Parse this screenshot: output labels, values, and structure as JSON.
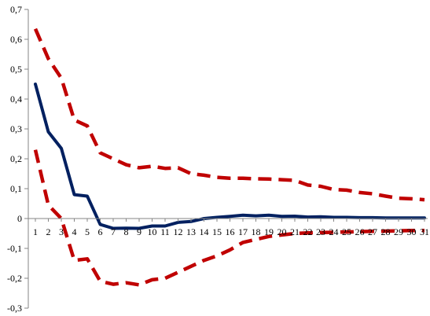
{
  "chart_data": {
    "type": "line",
    "title": "",
    "xlabel": "",
    "ylabel": "",
    "x": [
      1,
      2,
      3,
      4,
      5,
      6,
      7,
      8,
      9,
      10,
      11,
      12,
      13,
      14,
      15,
      16,
      17,
      18,
      19,
      20,
      21,
      22,
      23,
      24,
      25,
      26,
      27,
      28,
      29,
      30,
      31
    ],
    "x_tick_labels": [
      "1",
      "2",
      "3",
      "4",
      "5",
      "6",
      "7",
      "8",
      "9",
      "10",
      "11",
      "12",
      "13",
      "14",
      "15",
      "16",
      "17",
      "18",
      "19",
      "20",
      "21",
      "22",
      "23",
      "24",
      "25",
      "26",
      "27",
      "28",
      "29",
      "30",
      "31"
    ],
    "ylim": [
      -0.3,
      0.7
    ],
    "y_ticks": [
      -0.3,
      -0.2,
      -0.1,
      0,
      0.1,
      0.2,
      0.3,
      0.4,
      0.5,
      0.6,
      0.7
    ],
    "y_tick_labels": [
      "-0,3",
      "-0,2",
      "-0,1",
      "0",
      "0,1",
      "0,2",
      "0,3",
      "0,4",
      "0,5",
      "0,6",
      "0,7"
    ],
    "grid": false,
    "legend": "none",
    "series": [
      {
        "style": "solid",
        "color": "#002060",
        "values": [
          0.45,
          0.29,
          0.235,
          0.08,
          0.075,
          -0.02,
          -0.033,
          -0.032,
          -0.033,
          -0.025,
          -0.025,
          -0.013,
          -0.01,
          0.0,
          0.004,
          0.007,
          0.011,
          0.009,
          0.011,
          0.007,
          0.008,
          0.005,
          0.006,
          0.004,
          0.004,
          0.003,
          0.003,
          0.002,
          0.002,
          0.002,
          0.002
        ]
      },
      {
        "style": "dashed",
        "color": "#c00000",
        "values": [
          0.635,
          0.535,
          0.47,
          0.33,
          0.31,
          0.22,
          0.2,
          0.18,
          0.17,
          0.175,
          0.168,
          0.17,
          0.15,
          0.145,
          0.138,
          0.135,
          0.135,
          0.133,
          0.132,
          0.13,
          0.128,
          0.112,
          0.108,
          0.097,
          0.095,
          0.087,
          0.083,
          0.075,
          0.068,
          0.066,
          0.063
        ]
      },
      {
        "style": "dashed",
        "color": "#c00000",
        "values": [
          0.23,
          0.045,
          0.0,
          -0.14,
          -0.135,
          -0.21,
          -0.22,
          -0.215,
          -0.222,
          -0.205,
          -0.2,
          -0.18,
          -0.16,
          -0.14,
          -0.125,
          -0.105,
          -0.08,
          -0.07,
          -0.06,
          -0.055,
          -0.05,
          -0.048,
          -0.047,
          -0.046,
          -0.045,
          -0.044,
          -0.043,
          -0.042,
          -0.041,
          -0.04,
          -0.04
        ]
      }
    ]
  }
}
